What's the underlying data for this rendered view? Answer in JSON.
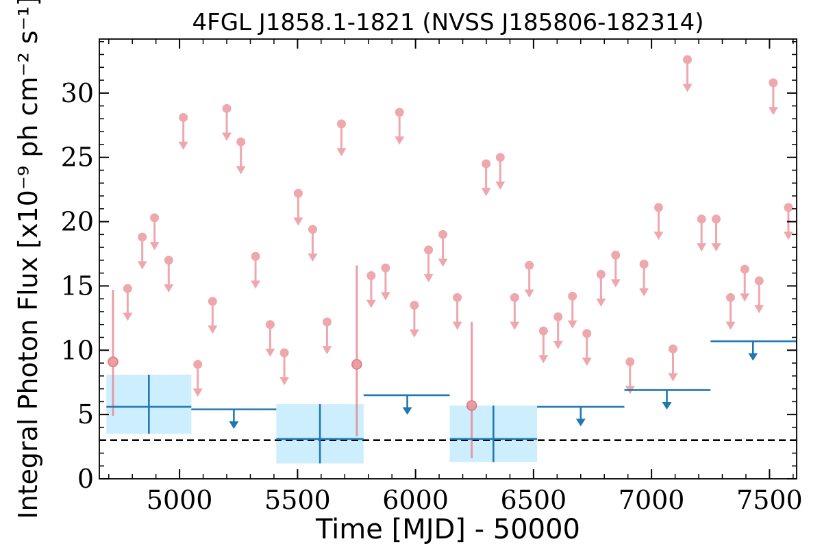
{
  "chart_data": {
    "type": "scatter",
    "title": "4FGL J1858.1-1821 (NVSS J185806-182314)",
    "xlabel": "Time [MJD] - 50000",
    "ylabel": "Integral Photon Flux [x10⁻⁹ ph cm⁻² s⁻¹]",
    "xlim": [
      4660,
      7615
    ],
    "ylim": [
      0,
      34.2
    ],
    "x_ticks": [
      5000,
      5500,
      6000,
      6500,
      7000,
      7500
    ],
    "y_ticks": [
      0,
      5,
      10,
      15,
      20,
      25,
      30
    ],
    "grid": false,
    "reference_line": {
      "y": 3.0,
      "style": "dashed",
      "color": "#000000"
    },
    "colors": {
      "short_bins": "#e8868e",
      "long_bins": "#1f77b4",
      "long_bins_error_band": "#cdeffd"
    },
    "series": [
      {
        "cadence": "short bins",
        "detections": [
          {
            "x": 4718,
            "y": 9.1,
            "y_low": 4.9,
            "y_high": 14.7
          },
          {
            "x": 5751,
            "y": 8.9,
            "y_low": 3.3,
            "y_high": 16.6
          },
          {
            "x": 6238,
            "y": 5.7,
            "y_low": 1.6,
            "y_high": 12.2
          }
        ],
        "upper_limits": [
          {
            "x": 4780,
            "y": 14.8
          },
          {
            "x": 4842,
            "y": 18.8
          },
          {
            "x": 4894,
            "y": 20.3
          },
          {
            "x": 4954,
            "y": 17.0
          },
          {
            "x": 5016,
            "y": 28.1
          },
          {
            "x": 5077,
            "y": 8.9
          },
          {
            "x": 5140,
            "y": 13.8
          },
          {
            "x": 5200,
            "y": 28.8
          },
          {
            "x": 5260,
            "y": 26.2
          },
          {
            "x": 5322,
            "y": 17.3
          },
          {
            "x": 5384,
            "y": 12.0
          },
          {
            "x": 5444,
            "y": 9.8
          },
          {
            "x": 5503,
            "y": 22.2
          },
          {
            "x": 5564,
            "y": 19.4
          },
          {
            "x": 5625,
            "y": 12.2
          },
          {
            "x": 5686,
            "y": 27.6
          },
          {
            "x": 5812,
            "y": 15.8
          },
          {
            "x": 5873,
            "y": 16.4
          },
          {
            "x": 5932,
            "y": 28.5
          },
          {
            "x": 5995,
            "y": 13.5
          },
          {
            "x": 6055,
            "y": 17.8
          },
          {
            "x": 6116,
            "y": 19.0
          },
          {
            "x": 6177,
            "y": 14.1
          },
          {
            "x": 6299,
            "y": 24.5
          },
          {
            "x": 6359,
            "y": 25.0
          },
          {
            "x": 6420,
            "y": 14.1
          },
          {
            "x": 6482,
            "y": 16.6
          },
          {
            "x": 6542,
            "y": 11.5
          },
          {
            "x": 6604,
            "y": 12.6
          },
          {
            "x": 6665,
            "y": 14.2
          },
          {
            "x": 6726,
            "y": 11.3
          },
          {
            "x": 6786,
            "y": 15.9
          },
          {
            "x": 6848,
            "y": 17.4
          },
          {
            "x": 6909,
            "y": 9.1
          },
          {
            "x": 6968,
            "y": 16.7
          },
          {
            "x": 7030,
            "y": 21.1
          },
          {
            "x": 7091,
            "y": 10.1
          },
          {
            "x": 7152,
            "y": 32.6
          },
          {
            "x": 7212,
            "y": 20.2
          },
          {
            "x": 7274,
            "y": 20.2
          },
          {
            "x": 7335,
            "y": 14.1
          },
          {
            "x": 7395,
            "y": 16.3
          },
          {
            "x": 7456,
            "y": 15.4
          },
          {
            "x": 7516,
            "y": 30.8
          },
          {
            "x": 7580,
            "y": 21.1
          }
        ]
      },
      {
        "cadence": "long bins",
        "detections": [
          {
            "x": 4870,
            "x_low": 4690,
            "x_high": 5050,
            "y": 5.6,
            "y_low": 3.5,
            "y_high": 8.1
          },
          {
            "x": 5595,
            "x_low": 5410,
            "x_high": 5780,
            "y": 3.1,
            "y_low": 1.2,
            "y_high": 5.8
          },
          {
            "x": 6330,
            "x_low": 6145,
            "x_high": 6515,
            "y": 3.1,
            "y_low": 1.3,
            "y_high": 5.7
          }
        ],
        "upper_limits": [
          {
            "x": 5230,
            "x_low": 5050,
            "x_high": 5410,
            "y": 5.4
          },
          {
            "x": 5965,
            "x_low": 5780,
            "x_high": 6145,
            "y": 6.5
          },
          {
            "x": 6700,
            "x_low": 6515,
            "x_high": 6885,
            "y": 5.6
          },
          {
            "x": 7065,
            "x_low": 6885,
            "x_high": 7250,
            "y": 6.9
          },
          {
            "x": 7430,
            "x_low": 7250,
            "x_high": 7615,
            "y": 10.7
          }
        ]
      }
    ]
  }
}
